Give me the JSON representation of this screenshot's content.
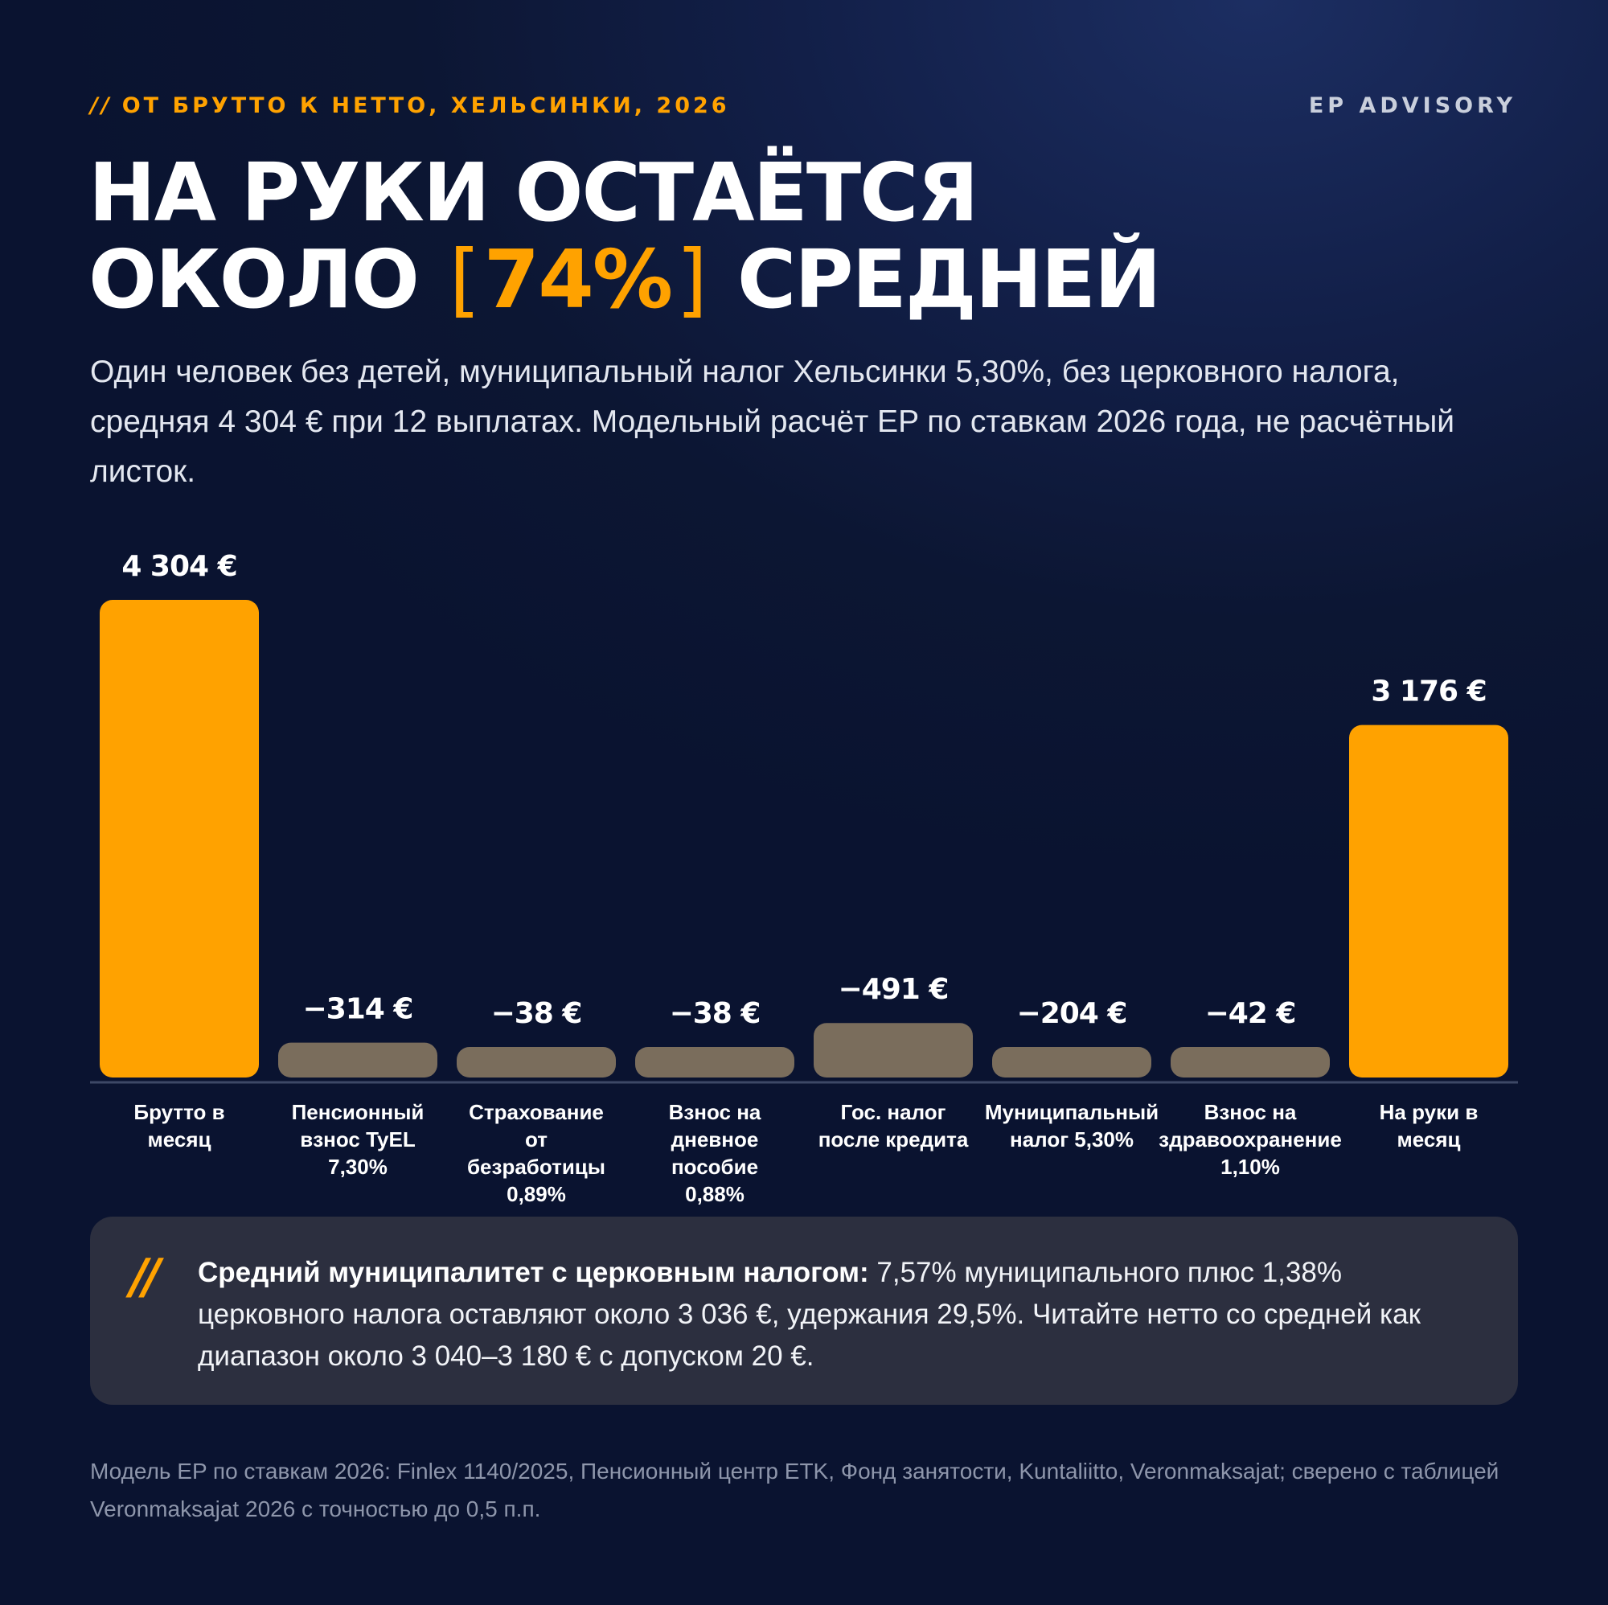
{
  "header": {
    "kicker_mark": "//",
    "kicker": "ОТ БРУТТО К НЕТТО, ХЕЛЬСИНКИ, 2026",
    "brand": "EP ADVISORY",
    "headline_line1": "НА РУКИ ОСТАЁТСЯ",
    "headline_pre": "ОКОЛО",
    "headline_bracket_open": "[",
    "headline_accent": "74%",
    "headline_bracket_close": "]",
    "headline_post": "СРЕДНЕЙ",
    "subtitle": "Один человек без детей, муниципальный налог Хельсинки 5,30%, без церковного налога, средняя 4 304 € при 12 выплатах. Модельный расчёт EP по ставкам 2026 года, не расчётный листок."
  },
  "chart_data": {
    "type": "bar",
    "title": "",
    "xlabel": "",
    "ylabel": "",
    "ylim": [
      0,
      4304
    ],
    "grid": false,
    "legend": "none",
    "categories": [
      "Брутто в месяц",
      "Пенсионный взнос TyEL 7,30%",
      "Страхование от безработицы 0,89%",
      "Взнос на дневное пособие 0,88%",
      "Гос. налог после кредита",
      "Муниципальный налог 5,30%",
      "Взнос на здравоохранение 1,10%",
      "На руки в месяц"
    ],
    "category_lines": [
      [
        "Брутто в",
        "месяц"
      ],
      [
        "Пенсионный",
        "взнос TyEL",
        "7,30%"
      ],
      [
        "Страхование",
        "от",
        "безработицы",
        "0,89%"
      ],
      [
        "Взнос на",
        "дневное",
        "пособие",
        "0,88%"
      ],
      [
        "Гос. налог",
        "после кредита"
      ],
      [
        "Муниципальный",
        "налог 5,30%"
      ],
      [
        "Взнос на",
        "здравоохранение",
        "1,10%"
      ],
      [
        "На руки в",
        "месяц"
      ]
    ],
    "values": [
      4304,
      -314,
      -38,
      -38,
      -491,
      -204,
      -42,
      3176
    ],
    "value_labels": [
      "4 304 €",
      "−314 €",
      "−38 €",
      "−38 €",
      "−491 €",
      "−204 €",
      "−42 €",
      "3 176 €"
    ],
    "kinds": [
      "total",
      "deduction",
      "deduction",
      "deduction",
      "deduction",
      "deduction",
      "deduction",
      "total"
    ]
  },
  "colors": {
    "accent": "#ffa200",
    "deduction": "#7a6d5c",
    "baseline": "#3d4866",
    "note_bg": "#2c2f3f"
  },
  "note": {
    "mark": "//",
    "bold": "Средний муниципалитет с церковным налогом:",
    "text": " 7,57% муниципального плюс 1,38% церковного налога оставляют около 3 036 €, удержания 29,5%. Читайте нетто со средней как диапазон около 3 040–3 180 € с допуском 20 €."
  },
  "source": "Модель EP по ставкам 2026: Finlex 1140/2025, Пенсионный центр ETK, Фонд занятости, Kuntaliitto, Veronmaksajat; сверено с таблицей Veronmaksajat 2026 с точностью до 0,5 п.п."
}
